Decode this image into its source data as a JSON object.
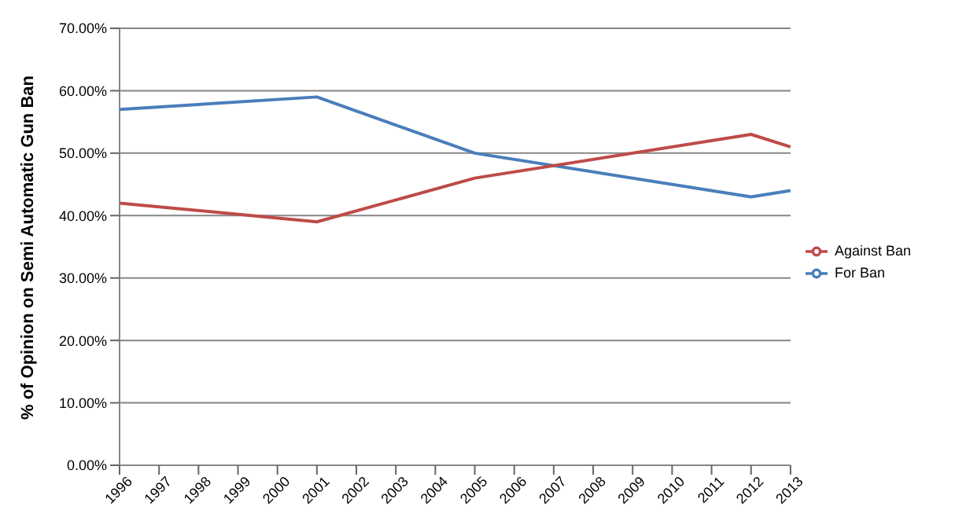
{
  "chart_data": {
    "type": "line",
    "ylabel": "% of Opinion on Semi Automatic Gun Ban",
    "categories": [
      "1996",
      "1997",
      "1998",
      "1999",
      "2000",
      "2001",
      "2002",
      "2003",
      "2004",
      "2005",
      "2006",
      "2007",
      "2008",
      "2009",
      "2010",
      "2011",
      "2012",
      "2013"
    ],
    "series": [
      {
        "name": "For Ban",
        "color": "#4a7ebb",
        "values": [
          57,
          null,
          null,
          null,
          null,
          59,
          null,
          null,
          null,
          50,
          null,
          null,
          null,
          null,
          null,
          null,
          43,
          44
        ]
      },
      {
        "name": "Against Ban",
        "color": "#be4b48",
        "values": [
          42,
          null,
          null,
          null,
          null,
          39,
          null,
          null,
          null,
          46,
          null,
          null,
          null,
          null,
          null,
          null,
          53,
          51
        ]
      }
    ],
    "ylim": [
      0,
      70
    ],
    "yticks": [
      {
        "value": 0,
        "label": "0.00%"
      },
      {
        "value": 10,
        "label": "10.00%"
      },
      {
        "value": 20,
        "label": "20.00%"
      },
      {
        "value": 30,
        "label": "30.00%"
      },
      {
        "value": 40,
        "label": "40.00%"
      },
      {
        "value": 50,
        "label": "50.00%"
      },
      {
        "value": 60,
        "label": "60.00%"
      },
      {
        "value": 70,
        "label": "70.00%"
      }
    ],
    "grid": "y",
    "legend": "right",
    "marker": "none",
    "line_style": "solid"
  }
}
